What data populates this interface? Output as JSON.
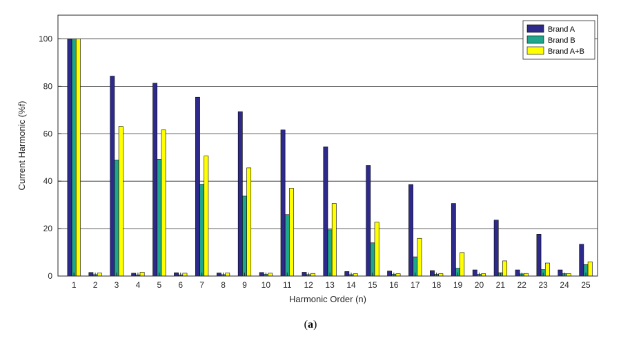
{
  "chart_data": {
    "type": "bar",
    "xlabel": "Harmonic Order (n)",
    "ylabel": "Current Harmonic (%f)",
    "ylim": [
      0,
      110
    ],
    "yticks": [
      0,
      20,
      40,
      60,
      80,
      100
    ],
    "grid": true,
    "legend_position": "top-right",
    "categories": [
      "1",
      "2",
      "3",
      "4",
      "5",
      "6",
      "7",
      "8",
      "9",
      "10",
      "11",
      "12",
      "13",
      "14",
      "15",
      "16",
      "17",
      "18",
      "19",
      "20",
      "21",
      "22",
      "23",
      "24",
      "25"
    ],
    "series": [
      {
        "name": "Brand A",
        "color": "#2e2a8c",
        "values": [
          100,
          1.5,
          84.3,
          1.2,
          81.3,
          1.4,
          75.4,
          1.3,
          69.3,
          1.5,
          61.6,
          1.6,
          54.5,
          1.9,
          46.6,
          2.1,
          38.6,
          2.3,
          30.6,
          2.6,
          23.6,
          2.6,
          17.6,
          2.6,
          13.4
        ]
      },
      {
        "name": "Brand B",
        "color": "#1fa68c",
        "values": [
          100,
          0.6,
          48.9,
          0.5,
          49.2,
          0.5,
          38.7,
          0.6,
          33.7,
          0.7,
          25.9,
          0.6,
          19.5,
          0.6,
          14.0,
          0.7,
          8.1,
          0.7,
          3.3,
          0.7,
          1.4,
          0.9,
          2.7,
          1.0,
          4.8
        ]
      },
      {
        "name": "Brand A+B",
        "color": "#ffff00",
        "values": [
          100,
          1.3,
          63.1,
          1.6,
          61.6,
          1.2,
          50.6,
          1.3,
          45.6,
          1.2,
          37.0,
          1.1,
          30.6,
          1.0,
          22.7,
          1.0,
          15.9,
          1.0,
          9.9,
          1.0,
          6.4,
          1.1,
          5.5,
          1.0,
          6.0
        ]
      }
    ]
  },
  "caption": {
    "open": "(",
    "letter": "a",
    "close": ")"
  }
}
